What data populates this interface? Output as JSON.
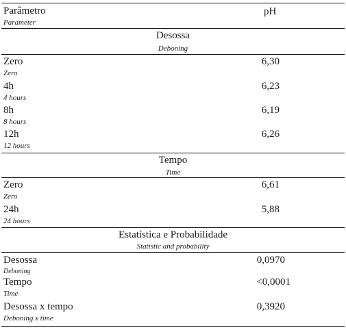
{
  "header": {
    "parameter_label": "Parâmetro",
    "parameter_sub": "Parameter",
    "ph_label": "pH"
  },
  "sections": [
    {
      "title": "Desossa",
      "subtitle": "Deboning",
      "rows": [
        {
          "label": "Zero",
          "sub": "Zero",
          "value": "6,30"
        },
        {
          "label": "4h",
          "sub": "4 hours",
          "value": "6,23"
        },
        {
          "label": "8h",
          "sub": "8 hours",
          "value": "6,19"
        },
        {
          "label": "12h",
          "sub": "12 hours",
          "value": "6,26"
        }
      ]
    },
    {
      "title": "Tempo",
      "subtitle": "Time",
      "rows": [
        {
          "label": "Zero",
          "sub": "Zero",
          "value": "6,61"
        },
        {
          "label": "24h",
          "sub": "24 hours",
          "value": "5,88"
        }
      ]
    },
    {
      "title": "Estatística e Probabilidade",
      "subtitle": "Statistic and probability",
      "rows": [
        {
          "label": "Desossa",
          "sub": "Deboning",
          "value": "0,0970"
        },
        {
          "label": "Tempo",
          "sub": "Time",
          "value": "<0,0001"
        },
        {
          "label": "Desossa x tempo",
          "sub": "Deboning x time",
          "value": "0,3920"
        }
      ]
    }
  ]
}
